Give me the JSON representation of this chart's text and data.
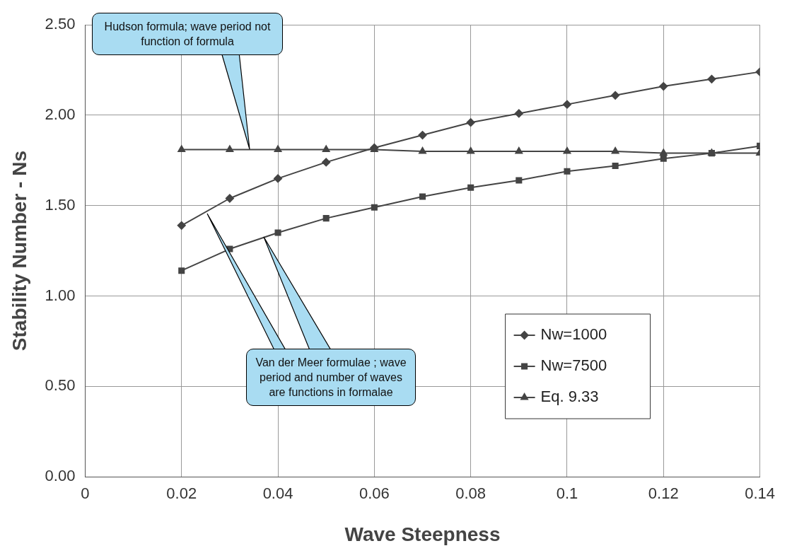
{
  "chart_data": {
    "type": "line",
    "xlabel": "Wave Steepness",
    "ylabel": "Stability Number - Ns",
    "x": [
      0.02,
      0.03,
      0.04,
      0.05,
      0.06,
      0.07,
      0.08,
      0.09,
      0.1,
      0.11,
      0.12,
      0.13,
      0.14
    ],
    "series": [
      {
        "name": "Nw=1000",
        "color": "#444444",
        "marker": "diamond",
        "values": [
          1.39,
          1.54,
          1.65,
          1.74,
          1.82,
          1.89,
          1.96,
          2.01,
          2.06,
          2.11,
          2.16,
          2.2,
          2.24
        ]
      },
      {
        "name": "Nw=7500",
        "color": "#444444",
        "marker": "square",
        "values": [
          1.14,
          1.26,
          1.35,
          1.43,
          1.49,
          1.55,
          1.6,
          1.64,
          1.69,
          1.72,
          1.76,
          1.79,
          1.83
        ]
      },
      {
        "name": "Eq. 9.33",
        "color": "#444444",
        "marker": "triangle",
        "values": [
          1.81,
          1.81,
          1.81,
          1.81,
          1.81,
          1.8,
          1.8,
          1.8,
          1.8,
          1.8,
          1.79,
          1.79,
          1.79
        ]
      }
    ],
    "xlim": [
      0,
      0.14
    ],
    "xticks": [
      0,
      0.02,
      0.04,
      0.06,
      0.08,
      0.1,
      0.12,
      0.14
    ],
    "ylim": [
      0,
      2.5
    ],
    "yticks": [
      {
        "value": 0,
        "label": "0.00"
      },
      {
        "value": 0.5,
        "label": "0.50"
      },
      {
        "value": 1,
        "label": "1.00"
      },
      {
        "value": 1.5,
        "label": "1.50"
      },
      {
        "value": 2,
        "label": "2.00"
      },
      {
        "value": 2.5,
        "label": "2.50"
      }
    ],
    "grid": true,
    "legend": "bottom right",
    "annotations": [
      "Hudson formula; wave period not function of formula",
      "Van der Meer formulae ; wave period and number of waves are functions in formalae"
    ]
  }
}
